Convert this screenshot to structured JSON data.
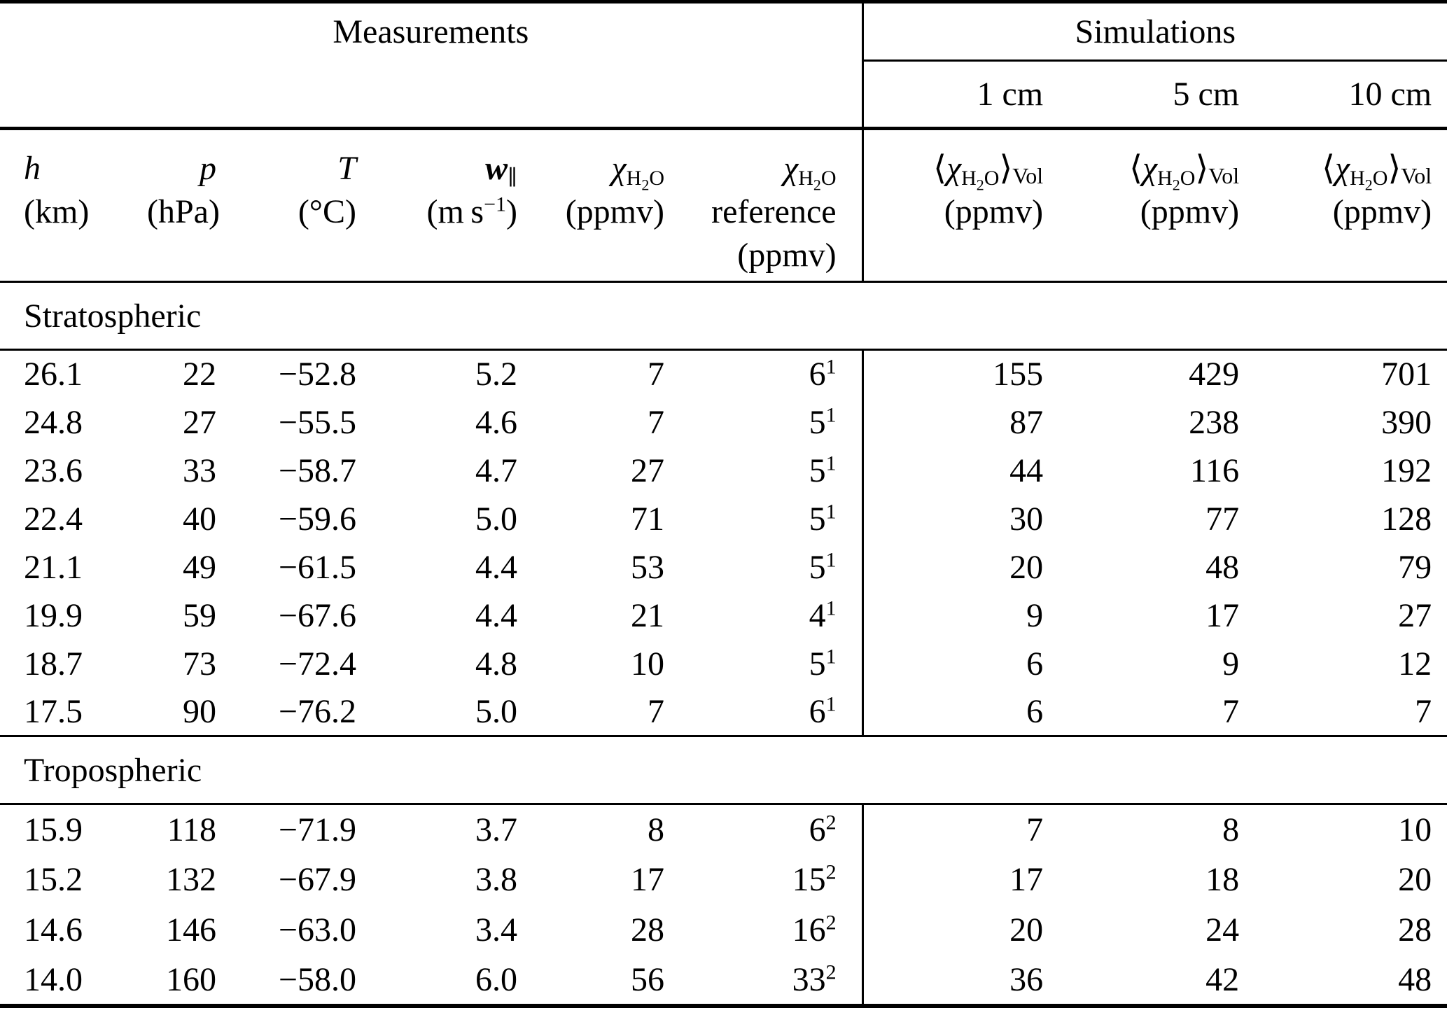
{
  "table": {
    "group_headers": {
      "measurements": "Measurements",
      "simulations": "Simulations"
    },
    "sim_sizes": [
      "1 cm",
      "5 cm",
      "10 cm"
    ],
    "columns": [
      {
        "name": "altitude",
        "line1": "<i>h</i>",
        "line2": "(km)"
      },
      {
        "name": "pressure",
        "line1": "<i>p</i>",
        "line2": "(hPa)"
      },
      {
        "name": "temperature",
        "line1": "<i>T</i>",
        "line2": "(°C)"
      },
      {
        "name": "wind-parallel",
        "line1": "<b><i>w</i></b><sub>∥</sub>",
        "line2": "(m s<sup>−1</sup>)"
      },
      {
        "name": "chi-h2o",
        "line1": "<i>χ</i><sub>H<sub>2</sub>O</sub>",
        "line2": "(ppmv)"
      },
      {
        "name": "chi-h2o-reference",
        "line1": "<i>χ</i><sub>H<sub>2</sub>O</sub>",
        "line2": "reference",
        "line3": "(ppmv)"
      },
      {
        "name": "chi-h2o-vol-1cm",
        "line1": "⟨<i>χ</i><sub>H<sub>2</sub>O</sub>⟩<sub class='vol'>Vol</sub>",
        "line2": "(ppmv)"
      },
      {
        "name": "chi-h2o-vol-5cm",
        "line1": "⟨<i>χ</i><sub>H<sub>2</sub>O</sub>⟩<sub class='vol'>Vol</sub>",
        "line2": "(ppmv)"
      },
      {
        "name": "chi-h2o-vol-10cm",
        "line1": "⟨<i>χ</i><sub>H<sub>2</sub>O</sub>⟩<sub class='vol'>Vol</sub>",
        "line2": "(ppmv)"
      }
    ],
    "sections": [
      {
        "label": "Stratospheric",
        "rows": [
          {
            "h": "26.1",
            "p": "22",
            "T": "−52.8",
            "w": "5.2",
            "chi": "7",
            "ref": "6",
            "ref_note": "1",
            "sim_1cm": "155",
            "sim_5cm": "429",
            "sim_10cm": "701"
          },
          {
            "h": "24.8",
            "p": "27",
            "T": "−55.5",
            "w": "4.6",
            "chi": "7",
            "ref": "5",
            "ref_note": "1",
            "sim_1cm": "87",
            "sim_5cm": "238",
            "sim_10cm": "390"
          },
          {
            "h": "23.6",
            "p": "33",
            "T": "−58.7",
            "w": "4.7",
            "chi": "27",
            "ref": "5",
            "ref_note": "1",
            "sim_1cm": "44",
            "sim_5cm": "116",
            "sim_10cm": "192"
          },
          {
            "h": "22.4",
            "p": "40",
            "T": "−59.6",
            "w": "5.0",
            "chi": "71",
            "ref": "5",
            "ref_note": "1",
            "sim_1cm": "30",
            "sim_5cm": "77",
            "sim_10cm": "128"
          },
          {
            "h": "21.1",
            "p": "49",
            "T": "−61.5",
            "w": "4.4",
            "chi": "53",
            "ref": "5",
            "ref_note": "1",
            "sim_1cm": "20",
            "sim_5cm": "48",
            "sim_10cm": "79"
          },
          {
            "h": "19.9",
            "p": "59",
            "T": "−67.6",
            "w": "4.4",
            "chi": "21",
            "ref": "4",
            "ref_note": "1",
            "sim_1cm": "9",
            "sim_5cm": "17",
            "sim_10cm": "27"
          },
          {
            "h": "18.7",
            "p": "73",
            "T": "−72.4",
            "w": "4.8",
            "chi": "10",
            "ref": "5",
            "ref_note": "1",
            "sim_1cm": "6",
            "sim_5cm": "9",
            "sim_10cm": "12"
          },
          {
            "h": "17.5",
            "p": "90",
            "T": "−76.2",
            "w": "5.0",
            "chi": "7",
            "ref": "6",
            "ref_note": "1",
            "sim_1cm": "6",
            "sim_5cm": "7",
            "sim_10cm": "7"
          }
        ]
      },
      {
        "label": "Tropospheric",
        "rows": [
          {
            "h": "15.9",
            "p": "118",
            "T": "−71.9",
            "w": "3.7",
            "chi": "8",
            "ref": "6",
            "ref_note": "2",
            "sim_1cm": "7",
            "sim_5cm": "8",
            "sim_10cm": "10"
          },
          {
            "h": "15.2",
            "p": "132",
            "T": "−67.9",
            "w": "3.8",
            "chi": "17",
            "ref": "15",
            "ref_note": "2",
            "sim_1cm": "17",
            "sim_5cm": "18",
            "sim_10cm": "20"
          },
          {
            "h": "14.6",
            "p": "146",
            "T": "−63.0",
            "w": "3.4",
            "chi": "28",
            "ref": "16",
            "ref_note": "2",
            "sim_1cm": "20",
            "sim_5cm": "24",
            "sim_10cm": "28"
          },
          {
            "h": "14.0",
            "p": "160",
            "T": "−58.0",
            "w": "6.0",
            "chi": "56",
            "ref": "33",
            "ref_note": "2",
            "sim_1cm": "36",
            "sim_5cm": "42",
            "sim_10cm": "48"
          }
        ]
      }
    ]
  }
}
